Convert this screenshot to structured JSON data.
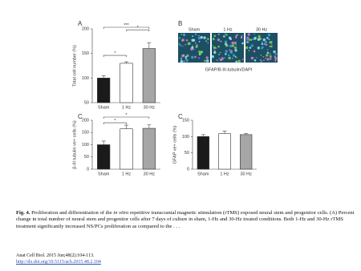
{
  "chart_data": [
    {
      "type": "bar",
      "panel": "A",
      "ylabel": "Total cell number (%)",
      "categories": [
        "Sham",
        "1 Hz",
        "30 Hz"
      ],
      "values": [
        100,
        130,
        160
      ],
      "errors": [
        5,
        3,
        12
      ],
      "colors": [
        "#1a1a1a",
        "#ffffff",
        "#a6a6a6"
      ],
      "ylim": [
        50,
        200
      ],
      "yticks": [
        50,
        100,
        150,
        200
      ],
      "brackets": [
        {
          "label": "*",
          "from": "Sham",
          "to": "1 Hz"
        },
        {
          "label": "*",
          "from": "1 Hz",
          "to": "30 Hz"
        },
        {
          "label": "***",
          "from": "Sham",
          "to": "30 Hz"
        }
      ]
    },
    {
      "type": "bar",
      "panel": "C",
      "ylabel": "β-III tubulin ve+ cells (%)",
      "categories": [
        "Sham",
        "1 Hz",
        "30 Hz"
      ],
      "values": [
        100,
        165,
        167
      ],
      "errors": [
        15,
        15,
        15
      ],
      "colors": [
        "#1a1a1a",
        "#ffffff",
        "#a6a6a6"
      ],
      "ylim": [
        0,
        200
      ],
      "yticks": [
        0,
        50,
        100,
        150,
        200
      ],
      "brackets": [
        {
          "label": "*",
          "from": "Sham",
          "to": "1 Hz"
        },
        {
          "label": "*",
          "from": "Sham",
          "to": "30 Hz"
        }
      ]
    },
    {
      "type": "bar",
      "panel": "C",
      "ylabel": "GFAP ve+ cells (%)",
      "categories": [
        "Sham",
        "1 Hz",
        "30 Hz"
      ],
      "values": [
        100,
        109,
        106
      ],
      "errors": [
        6,
        8,
        3
      ],
      "colors": [
        "#1a1a1a",
        "#ffffff",
        "#a6a6a6"
      ],
      "ylim": [
        0,
        150
      ],
      "yticks": [
        0,
        50,
        100,
        150
      ],
      "brackets": []
    }
  ],
  "panel_b": {
    "panel": "B",
    "labels": [
      "Sham",
      "1 Hz",
      "30 Hz"
    ],
    "caption": "GFAP/B-III-tubulin/DAPI"
  },
  "caption": {
    "label": "Fig. 4.",
    "parts": [
      "Proliferation and differentiation of the ",
      "in vitro",
      " repetitive transcranial magnetic stimulation (rTMS) exposed neural stem and progenitor cells. (A) Percent change in total number of neural stem and progenitor cells after 7 days of culture in sham, 1-Hz and 30-Hz treated conditions. Both 1-Hz and 30-Hz rTMS treatment significantly increased NS/PCs proliferation as compared to the . . ."
    ]
  },
  "source": {
    "citation": "Anat Cell Biol. 2015 Jun;48(2):104-113.",
    "link": "http://dx.doi.org/10.5115/acb.2015.48.2.104"
  }
}
